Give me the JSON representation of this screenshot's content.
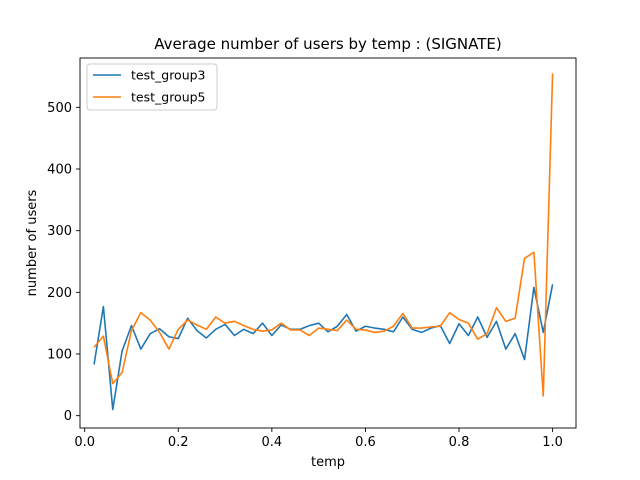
{
  "chart_data": {
    "type": "line",
    "title": "Average number of users by temp : (SIGNATE)",
    "xlabel": "temp",
    "ylabel": "number of users",
    "xlim": [
      -0.01,
      1.05
    ],
    "ylim": [
      -20,
      580
    ],
    "xticks": [
      0.0,
      0.2,
      0.4,
      0.6,
      0.8,
      1.0
    ],
    "xtick_labels": [
      "0.0",
      "0.2",
      "0.4",
      "0.6",
      "0.8",
      "1.0"
    ],
    "yticks": [
      0,
      100,
      200,
      300,
      400,
      500
    ],
    "ytick_labels": [
      "0",
      "100",
      "200",
      "300",
      "400",
      "500"
    ],
    "grid": false,
    "legend_position": "top-left",
    "x": [
      0.02,
      0.04,
      0.06,
      0.08,
      0.1,
      0.12,
      0.14,
      0.16,
      0.18,
      0.2,
      0.22,
      0.24,
      0.26,
      0.28,
      0.3,
      0.32,
      0.34,
      0.36,
      0.38,
      0.4,
      0.42,
      0.44,
      0.46,
      0.48,
      0.5,
      0.52,
      0.54,
      0.56,
      0.58,
      0.6,
      0.62,
      0.64,
      0.66,
      0.68,
      0.7,
      0.72,
      0.74,
      0.76,
      0.78,
      0.8,
      0.82,
      0.84,
      0.86,
      0.88,
      0.9,
      0.92,
      0.94,
      0.96,
      0.98,
      1.0
    ],
    "series": [
      {
        "name": "test_group3",
        "color": "#1f77b4",
        "values": [
          83,
          177,
          10,
          105,
          146,
          108,
          133,
          141,
          128,
          125,
          158,
          138,
          126,
          140,
          148,
          130,
          140,
          133,
          150,
          130,
          147,
          140,
          140,
          146,
          150,
          136,
          145,
          164,
          137,
          145,
          142,
          140,
          136,
          160,
          140,
          135,
          142,
          146,
          117,
          149,
          130,
          160,
          127,
          153,
          108,
          133,
          91,
          208,
          135,
          213
        ]
      },
      {
        "name": "test_group5",
        "color": "#ff7f0e",
        "values": [
          111,
          129,
          52,
          70,
          138,
          167,
          155,
          135,
          108,
          140,
          155,
          147,
          140,
          160,
          150,
          153,
          146,
          140,
          137,
          139,
          150,
          139,
          139,
          130,
          142,
          140,
          138,
          155,
          140,
          139,
          135,
          137,
          145,
          166,
          142,
          142,
          144,
          145,
          167,
          156,
          150,
          124,
          133,
          175,
          153,
          158,
          255,
          265,
          32,
          555
        ]
      }
    ]
  }
}
